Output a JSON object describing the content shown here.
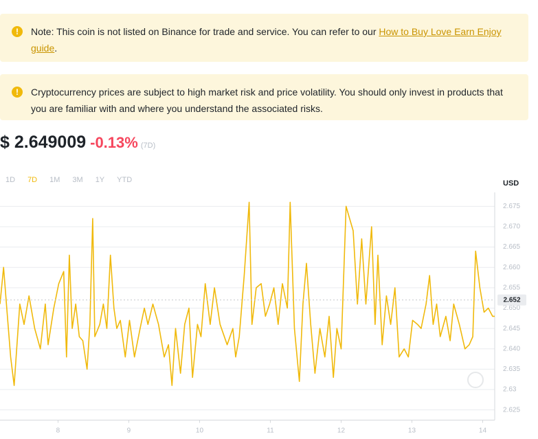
{
  "notes": [
    {
      "text": "Note: This coin is not listed on Binance for trade and service. You can refer to our",
      "link": "How to Buy Love Earn Enjoy guide",
      "suffix": "."
    },
    {
      "text": "Cryptocurrency prices are subject to high market risk and price volatility. You should only invest in products that you are familiar with and where you understand the associated risks."
    }
  ],
  "price": {
    "value": "$ 2.649009",
    "change": "-0.13%",
    "period": "(7D)"
  },
  "tabs": [
    {
      "label": "1D",
      "active": false
    },
    {
      "label": "7D",
      "active": true
    },
    {
      "label": "1M",
      "active": false
    },
    {
      "label": "3M",
      "active": false
    },
    {
      "label": "1Y",
      "active": false
    },
    {
      "label": "YTD",
      "active": false
    }
  ],
  "chart_data": {
    "type": "line",
    "y_axis_label": "USD",
    "x": [
      7.18,
      7.23,
      7.28,
      7.33,
      7.38,
      7.46,
      7.52,
      7.59,
      7.67,
      7.75,
      7.82,
      7.86,
      7.94,
      8.01,
      8.08,
      8.12,
      8.16,
      8.2,
      8.25,
      8.3,
      8.35,
      8.41,
      8.45,
      8.49,
      8.52,
      8.59,
      8.64,
      8.69,
      8.74,
      8.79,
      8.83,
      8.88,
      8.95,
      9.01,
      9.08,
      9.16,
      9.22,
      9.27,
      9.34,
      9.42,
      9.5,
      9.56,
      9.61,
      9.66,
      9.73,
      9.79,
      9.85,
      9.9,
      9.97,
      10.02,
      10.08,
      10.15,
      10.21,
      10.29,
      10.39,
      10.47,
      10.51,
      10.56,
      10.63,
      10.7,
      10.74,
      10.8,
      10.87,
      10.93,
      10.99,
      11.05,
      11.11,
      11.17,
      11.24,
      11.28,
      11.34,
      11.41,
      11.46,
      11.51,
      11.57,
      11.63,
      11.7,
      11.77,
      11.83,
      11.89,
      11.94,
      12.0,
      12.07,
      12.12,
      12.17,
      12.23,
      12.29,
      12.35,
      12.43,
      12.48,
      12.52,
      12.58,
      12.64,
      12.7,
      12.76,
      12.82,
      12.89,
      12.95,
      13.01,
      13.08,
      13.13,
      13.2,
      13.25,
      13.3,
      13.35,
      13.4,
      13.48,
      13.54,
      13.59,
      13.67,
      13.75,
      13.81,
      13.86,
      13.9,
      13.96,
      14.02,
      14.08,
      14.14,
      14.17
    ],
    "series": [
      {
        "color": "#f0b90b",
        "values": [
          2.651,
          2.66,
          2.649,
          2.638,
          2.631,
          2.651,
          2.646,
          2.653,
          2.645,
          2.64,
          2.651,
          2.641,
          2.65,
          2.656,
          2.659,
          2.638,
          2.663,
          2.645,
          2.651,
          2.643,
          2.642,
          2.635,
          2.646,
          2.672,
          2.643,
          2.646,
          2.651,
          2.645,
          2.663,
          2.65,
          2.645,
          2.647,
          2.638,
          2.647,
          2.638,
          2.645,
          2.65,
          2.646,
          2.651,
          2.646,
          2.638,
          2.641,
          2.631,
          2.645,
          2.634,
          2.646,
          2.65,
          2.633,
          2.646,
          2.643,
          2.656,
          2.646,
          2.655,
          2.646,
          2.641,
          2.645,
          2.638,
          2.643,
          2.658,
          2.676,
          2.646,
          2.655,
          2.656,
          2.648,
          2.651,
          2.655,
          2.646,
          2.656,
          2.65,
          2.676,
          2.645,
          2.632,
          2.651,
          2.661,
          2.646,
          2.634,
          2.645,
          2.638,
          2.648,
          2.633,
          2.645,
          2.64,
          2.675,
          2.672,
          2.669,
          2.651,
          2.667,
          2.651,
          2.67,
          2.646,
          2.663,
          2.641,
          2.653,
          2.646,
          2.655,
          2.638,
          2.64,
          2.638,
          2.647,
          2.646,
          2.645,
          2.651,
          2.658,
          2.646,
          2.651,
          2.643,
          2.648,
          2.642,
          2.651,
          2.646,
          2.64,
          2.641,
          2.643,
          2.664,
          2.655,
          2.649,
          2.65,
          2.648,
          2.648
        ]
      }
    ],
    "current_value": 2.652,
    "xlim": [
      7.18,
      14.17
    ],
    "xticks": [
      8,
      9,
      10,
      11,
      12,
      13,
      14
    ],
    "ylim": [
      2.6225,
      2.6775
    ],
    "yticks": [
      2.625,
      2.63,
      {
        "value": 2.635,
        "label": "2.635"
      },
      {
        "value": 2.64,
        "label": "2.640"
      },
      2.645,
      {
        "value": 2.65,
        "label": "2.650"
      },
      2.655,
      {
        "value": 2.66,
        "label": "2.660"
      },
      2.665,
      {
        "value": 2.67,
        "label": "2.670"
      },
      2.675
    ],
    "grid": true
  }
}
